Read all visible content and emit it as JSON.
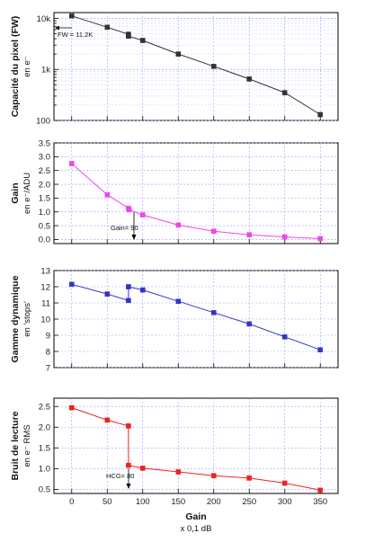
{
  "chart_data": [
    {
      "type": "line",
      "y_scale": "log",
      "ylabel": "Capacité du pixel (FW)",
      "ylabel_sub": "en e⁻",
      "ylim": [
        100,
        13000
      ],
      "yticks": [
        100,
        1000,
        10000
      ],
      "ytick_labels": [
        "100",
        "1k",
        "10k"
      ],
      "color": "#333333",
      "x": [
        0,
        50,
        80,
        80,
        100,
        150,
        200,
        250,
        300,
        350
      ],
      "y": [
        11200,
        6700,
        4900,
        4500,
        3700,
        2000,
        1150,
        650,
        350,
        130
      ],
      "annotation": "FW = 11.2K"
    },
    {
      "type": "line",
      "ylabel": "Gain",
      "ylabel_sub": "en e⁻/ADU",
      "ylim": [
        -0.15,
        3.5
      ],
      "yticks": [
        0.0,
        0.5,
        1.0,
        1.5,
        2.0,
        2.5,
        3.0,
        3.5
      ],
      "ytick_labels": [
        "0.0",
        "0.5",
        "1.0",
        "1.5",
        "2.0",
        "2.5",
        "3.0",
        "3.5"
      ],
      "color": "#ee44ee",
      "x": [
        0,
        50,
        80,
        81,
        100,
        150,
        200,
        250,
        300,
        350
      ],
      "y": [
        2.75,
        1.62,
        1.13,
        1.08,
        0.89,
        0.52,
        0.3,
        0.17,
        0.09,
        0.03
      ],
      "annotation": "Gain= 90"
    },
    {
      "type": "line",
      "ylabel": "Gamme dynamique",
      "ylabel_sub": "en 'stops'",
      "ylim": [
        7,
        13
      ],
      "yticks": [
        7,
        8,
        9,
        10,
        11,
        12,
        13
      ],
      "ytick_labels": [
        "7",
        "8",
        "9",
        "10",
        "11",
        "12",
        "13"
      ],
      "color": "#3333cc",
      "x": [
        0,
        50,
        80,
        80,
        100,
        150,
        200,
        250,
        300,
        350
      ],
      "y": [
        12.15,
        11.55,
        11.15,
        12.0,
        11.8,
        11.1,
        10.4,
        9.7,
        8.9,
        8.1
      ]
    },
    {
      "type": "line",
      "ylabel": "Bruit de lecture",
      "ylabel_sub": "en e⁻ RMS",
      "ylim": [
        0.4,
        2.7
      ],
      "yticks": [
        0.5,
        1.0,
        1.5,
        2.0,
        2.5
      ],
      "ytick_labels": [
        "0.5",
        "1.0",
        "1.5",
        "2.0",
        "2.5"
      ],
      "color": "#ee2222",
      "x": [
        0,
        50,
        80,
        80,
        100,
        150,
        200,
        250,
        300,
        350
      ],
      "y": [
        2.47,
        2.17,
        2.03,
        1.08,
        1.01,
        0.92,
        0.83,
        0.77,
        0.65,
        0.48
      ],
      "annotation": "HCG= 80"
    }
  ],
  "x_axis": {
    "label": "Gain",
    "sublabel": "x 0,1 dB",
    "xlim": [
      -25,
      375
    ],
    "ticks": [
      0,
      50,
      100,
      150,
      200,
      250,
      300,
      350
    ],
    "tick_labels": [
      "0",
      "50",
      "100",
      "150",
      "200",
      "250",
      "300",
      "350"
    ]
  },
  "gridline_color": "#8fa3ff"
}
